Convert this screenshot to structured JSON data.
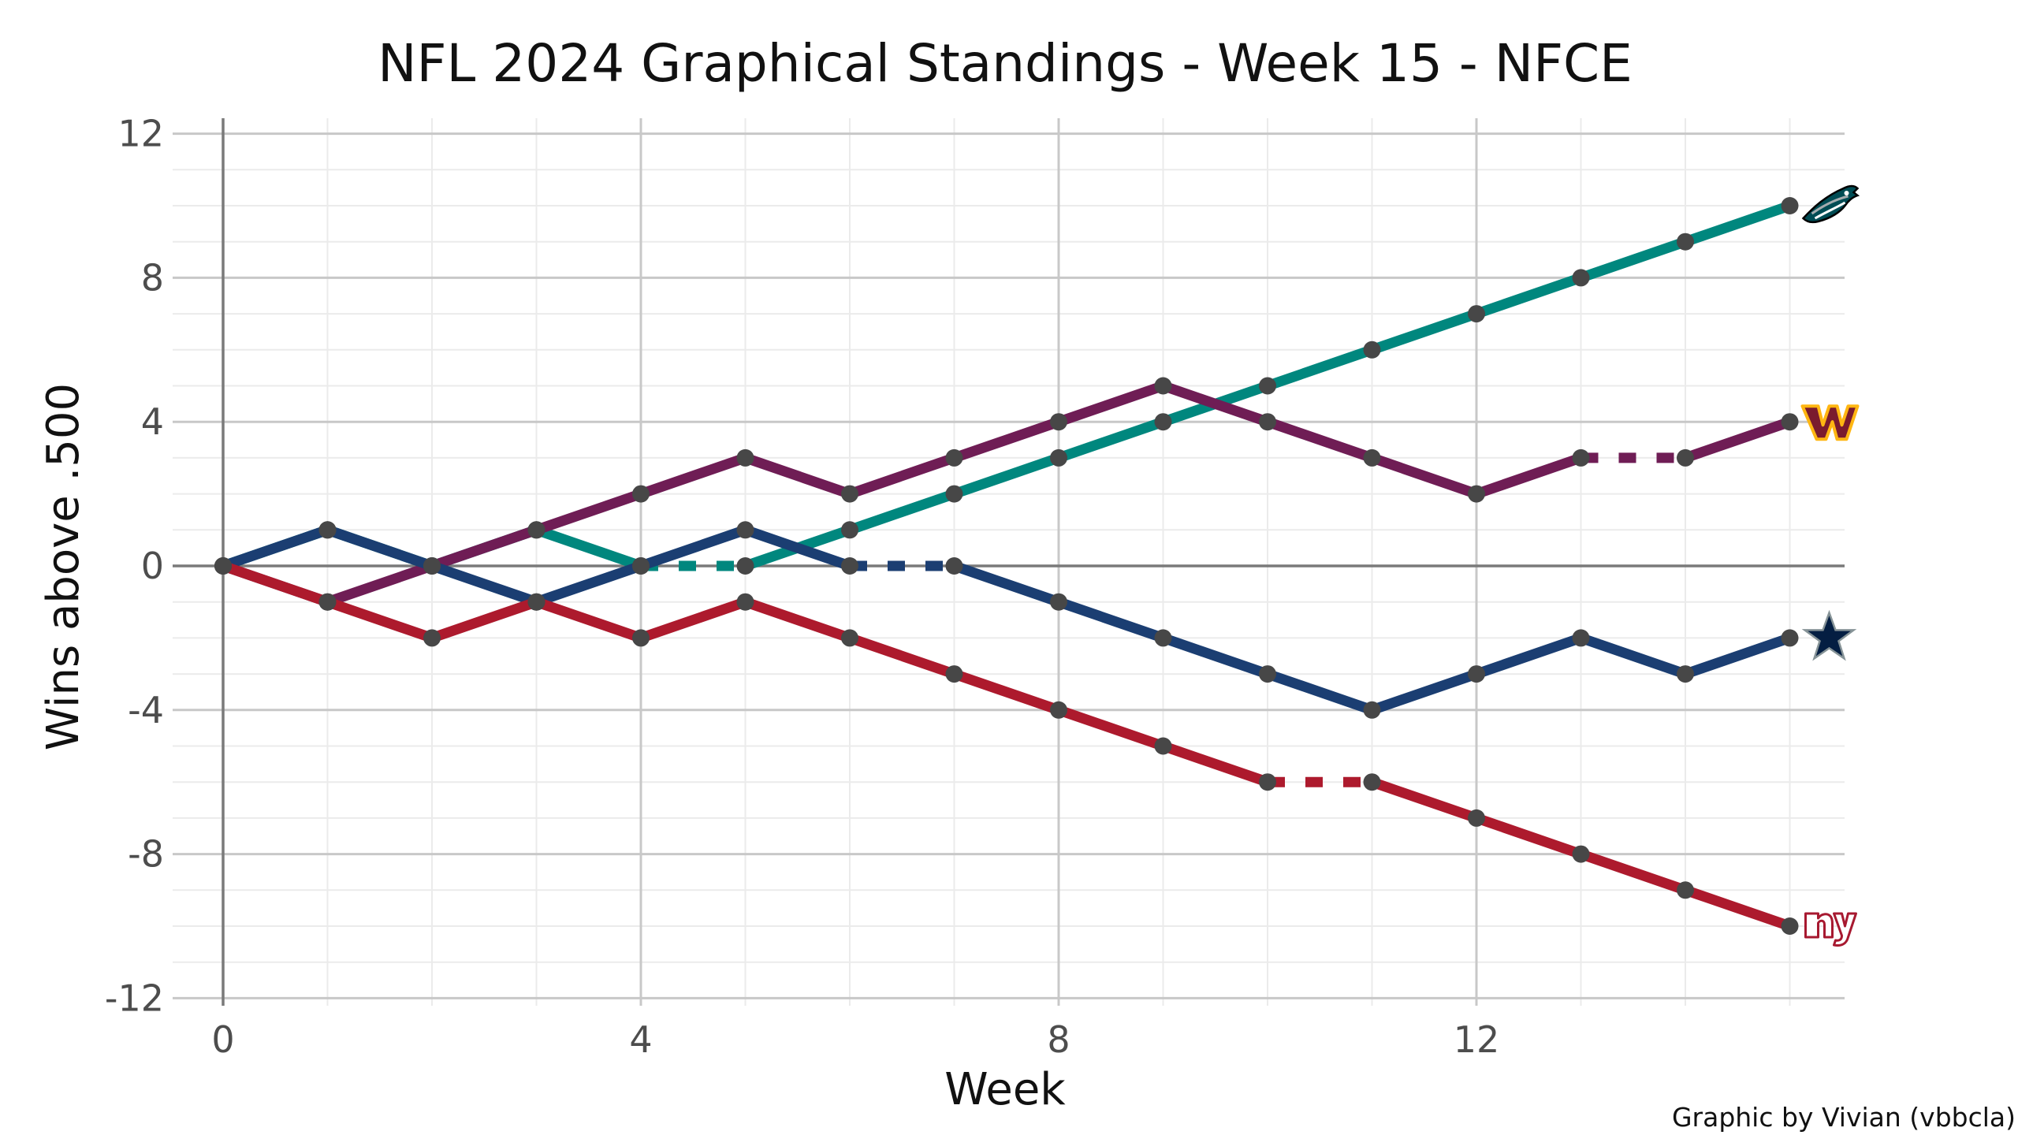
{
  "chart_data": {
    "type": "line",
    "title": "NFL 2024 Graphical Standings - Week 15 - NFCE",
    "xlabel": "Week",
    "ylabel": "Wins above .500",
    "caption": "Graphic by Vivian (vbbcla)",
    "xlim": [
      0,
      15
    ],
    "ylim": [
      -12,
      12
    ],
    "x_ticks": [
      0,
      4,
      8,
      12
    ],
    "y_ticks": [
      -12,
      -8,
      -4,
      0,
      4,
      8,
      12
    ],
    "x_tick_labels": [
      "0",
      "4",
      "8",
      "12"
    ],
    "y_tick_labels": [
      "-12",
      "-8",
      "-4",
      "0",
      "4",
      "8",
      "12"
    ],
    "grid": true,
    "legend": "none",
    "x": [
      0,
      1,
      2,
      3,
      4,
      5,
      6,
      7,
      8,
      9,
      10,
      11,
      12,
      13,
      14,
      15
    ],
    "series": [
      {
        "team_logo": "eagles-logo",
        "color": "#00877e",
        "values": [
          0,
          1,
          0,
          1,
          0,
          0,
          1,
          2,
          3,
          4,
          5,
          6,
          7,
          8,
          9,
          10
        ],
        "bye_after_week": 4
      },
      {
        "team_logo": "commanders-logo",
        "color": "#6f1d55",
        "values": [
          0,
          -1,
          0,
          1,
          2,
          3,
          2,
          3,
          4,
          5,
          4,
          3,
          2,
          3,
          3,
          4
        ],
        "bye_after_week": 13
      },
      {
        "team_logo": "cowboys-logo",
        "color": "#1b3e72",
        "values": [
          0,
          1,
          0,
          -1,
          0,
          1,
          0,
          0,
          -1,
          -2,
          -3,
          -4,
          -3,
          -2,
          -3,
          -2
        ],
        "bye_after_week": 6
      },
      {
        "team_logo": "giants-logo",
        "color": "#ad1a2d",
        "values": [
          0,
          -1,
          -2,
          -1,
          -2,
          -1,
          -2,
          -3,
          -4,
          -5,
          -6,
          -6,
          -7,
          -8,
          -9,
          -10
        ],
        "bye_after_week": 10
      }
    ]
  },
  "colors": {
    "point": "#474747",
    "major_grid": "#c8c8c8",
    "minor_grid": "#ebebeb",
    "axis_line": "#7a7a7a"
  }
}
